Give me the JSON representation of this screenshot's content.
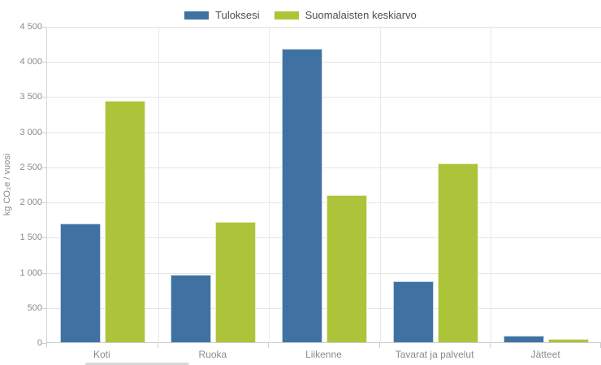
{
  "legend": {
    "items": [
      {
        "label": "Tuloksesi",
        "color": "#3f72a3"
      },
      {
        "label": "Suomalaisten keskiarvo",
        "color": "#adc43a"
      }
    ]
  },
  "chart_data": {
    "type": "bar",
    "title": "",
    "categories": [
      "Koti",
      "Ruoka",
      "Liikenne",
      "Tavarat ja palvelut",
      "Jätteet"
    ],
    "series": [
      {
        "name": "Tuloksesi",
        "color": "#3f72a3",
        "values": [
          1690,
          960,
          4180,
          870,
          90
        ]
      },
      {
        "name": "Suomalaisten keskiarvo",
        "color": "#adc43a",
        "values": [
          3440,
          1710,
          2090,
          2540,
          50
        ]
      }
    ],
    "xlabel": "",
    "ylabel": "kg CO₂e / vuosi",
    "ylim": [
      0,
      4500
    ],
    "ytick_step": 500,
    "ytick_labels": [
      "0",
      "500",
      "1 000",
      "1 500",
      "2 000",
      "2 500",
      "3 000",
      "3 500",
      "4 000",
      "4 500"
    ],
    "grid": true,
    "legend_position": "top"
  }
}
